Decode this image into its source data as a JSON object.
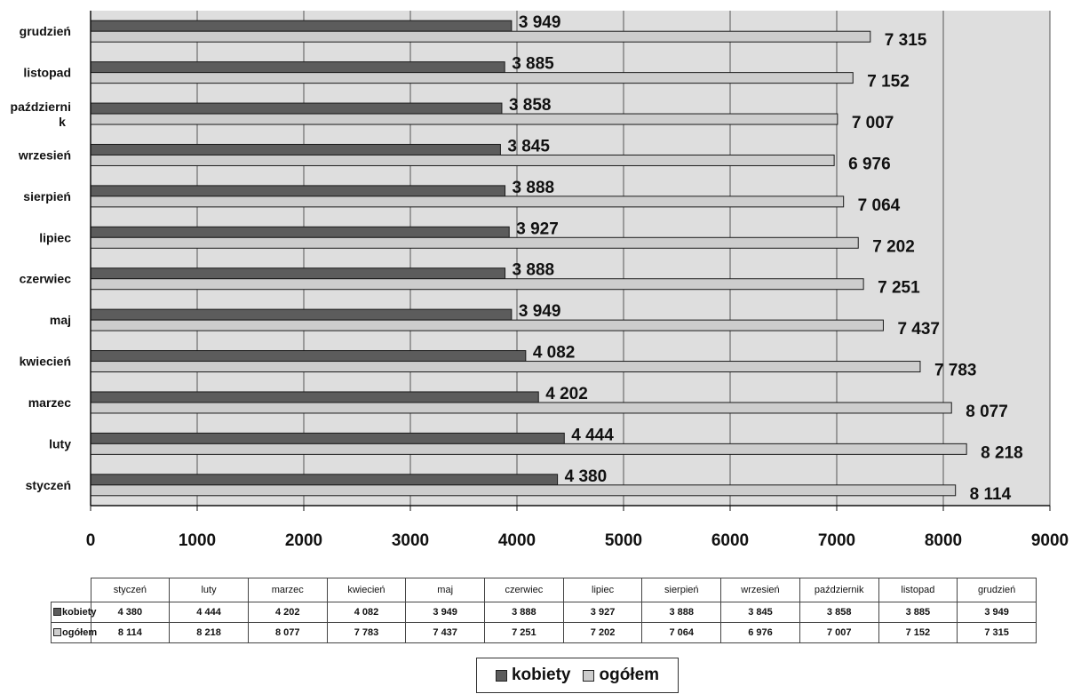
{
  "chart_data": {
    "type": "bar",
    "orientation": "horizontal",
    "categories": [
      "styczeń",
      "luty",
      "marzec",
      "kwiecień",
      "maj",
      "czerwiec",
      "lipiec",
      "sierpień",
      "wrzesień",
      "październi k",
      "listopad",
      "grudzień"
    ],
    "series": [
      {
        "name": "kobiety",
        "values": [
          4380,
          4444,
          4202,
          4082,
          3949,
          3888,
          3927,
          3888,
          3845,
          3858,
          3885,
          3949
        ],
        "labels": [
          "4 380",
          "4 444",
          "4 202",
          "4 082",
          "3 949",
          "3 888",
          "3 927",
          "3 888",
          "3 845",
          "3 858",
          "3 885",
          "3 949"
        ]
      },
      {
        "name": "ogółem",
        "values": [
          8114,
          8218,
          8077,
          7783,
          7437,
          7251,
          7202,
          7064,
          6976,
          7007,
          7152,
          7315
        ],
        "labels": [
          "8 114",
          "8 218",
          "8 077",
          "7 783",
          "7 437",
          "7 251",
          "7 202",
          "7 064",
          "6 976",
          "7 007",
          "7 152",
          "7 315"
        ]
      }
    ],
    "xlim": [
      0,
      9000
    ],
    "xticks": [
      0,
      1000,
      2000,
      3000,
      4000,
      5000,
      6000,
      7000,
      8000,
      9000
    ],
    "xtick_labels": [
      "0",
      "1000",
      "2000",
      "3000",
      "4000",
      "5000",
      "6000",
      "7000",
      "8000",
      "9000"
    ],
    "grid": "vertical",
    "legend_position": "bottom",
    "colors": {
      "kobiety": "#5c5c5c",
      "ogółem": "#cdcdcd",
      "plot_bg": "#dedede"
    }
  },
  "table": {
    "columns": [
      "styczeń",
      "luty",
      "marzec",
      "kwiecień",
      "maj",
      "czerwiec",
      "lipiec",
      "sierpień",
      "wrzesień",
      "październik",
      "listopad",
      "grudzień"
    ],
    "rows": [
      {
        "name": "kobiety",
        "cells": [
          "4 380",
          "4 444",
          "4 202",
          "4 082",
          "3 949",
          "3 888",
          "3 927",
          "3 888",
          "3 845",
          "3 858",
          "3 885",
          "3 949"
        ]
      },
      {
        "name": "ogółem",
        "cells": [
          "8 114",
          "8 218",
          "8 077",
          "7 783",
          "7 437",
          "7 251",
          "7 202",
          "7 064",
          "6 976",
          "7 007",
          "7 152",
          "7 315"
        ]
      }
    ]
  },
  "legend": {
    "items": [
      "kobiety",
      "ogółem"
    ]
  }
}
